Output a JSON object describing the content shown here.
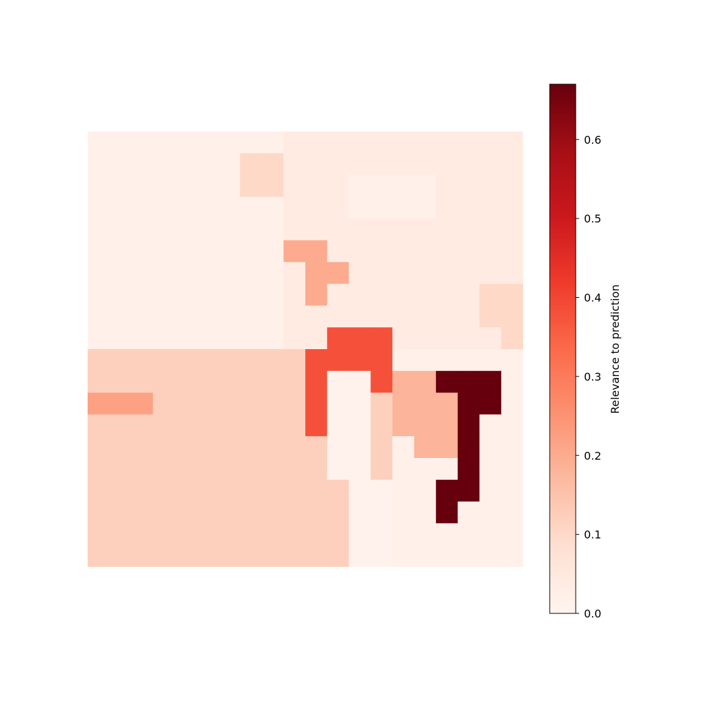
{
  "chart_data": {
    "type": "heatmap",
    "colormap": "Reds",
    "axes_visible": false,
    "grid_resolution": [
      20,
      20
    ],
    "values": [
      [
        0.02,
        0.02,
        0.02,
        0.02,
        0.02,
        0.02,
        0.02,
        0.02,
        0.02,
        0.04,
        0.04,
        0.04,
        0.04,
        0.04,
        0.04,
        0.04,
        0.04,
        0.04,
        0.04,
        0.04
      ],
      [
        0.02,
        0.02,
        0.02,
        0.02,
        0.02,
        0.02,
        0.02,
        0.02,
        0.02,
        0.04,
        0.04,
        0.04,
        0.04,
        0.04,
        0.04,
        0.04,
        0.04,
        0.04,
        0.04,
        0.04
      ],
      [
        0.02,
        0.02,
        0.02,
        0.02,
        0.02,
        0.02,
        0.02,
        0.02,
        0.02,
        0.04,
        0.04,
        0.04,
        0.02,
        0.02,
        0.02,
        0.02,
        0.04,
        0.04,
        0.04,
        0.04
      ],
      [
        0.02,
        0.02,
        0.02,
        0.02,
        0.02,
        0.02,
        0.02,
        0.02,
        0.02,
        0.04,
        0.04,
        0.04,
        0.02,
        0.02,
        0.02,
        0.02,
        0.04,
        0.04,
        0.04,
        0.04
      ],
      [
        0.02,
        0.02,
        0.02,
        0.02,
        0.02,
        0.02,
        0.02,
        0.02,
        0.02,
        0.04,
        0.04,
        0.04,
        0.04,
        0.04,
        0.04,
        0.04,
        0.04,
        0.04,
        0.04,
        0.04
      ],
      [
        0.02,
        0.02,
        0.02,
        0.02,
        0.02,
        0.02,
        0.02,
        0.02,
        0.02,
        0.04,
        0.04,
        0.04,
        0.04,
        0.04,
        0.04,
        0.04,
        0.04,
        0.04,
        0.04,
        0.04
      ],
      [
        0.02,
        0.02,
        0.02,
        0.02,
        0.02,
        0.02,
        0.02,
        0.02,
        0.02,
        0.04,
        0.04,
        0.04,
        0.04,
        0.04,
        0.04,
        0.04,
        0.04,
        0.04,
        0.04,
        0.04
      ],
      [
        0.02,
        0.02,
        0.02,
        0.02,
        0.02,
        0.02,
        0.02,
        0.02,
        0.02,
        0.04,
        0.04,
        0.04,
        0.04,
        0.04,
        0.04,
        0.04,
        0.04,
        0.04,
        0.04,
        0.04
      ],
      [
        0.02,
        0.02,
        0.02,
        0.02,
        0.02,
        0.02,
        0.02,
        0.02,
        0.02,
        0.04,
        0.04,
        0.04,
        0.04,
        0.04,
        0.04,
        0.04,
        0.04,
        0.04,
        0.04,
        0.04
      ],
      [
        0.02,
        0.02,
        0.02,
        0.02,
        0.02,
        0.02,
        0.02,
        0.02,
        0.02,
        0.04,
        0.04,
        0.04,
        0.04,
        0.04,
        0.04,
        0.04,
        0.04,
        0.04,
        0.04,
        0.04
      ],
      [
        0.12,
        0.12,
        0.12,
        0.12,
        0.12,
        0.12,
        0.12,
        0.12,
        0.12,
        0.12,
        0.12,
        0.12,
        0.12,
        0.12,
        0.02,
        0.02,
        0.02,
        0.02,
        0.02,
        0.02
      ],
      [
        0.12,
        0.12,
        0.12,
        0.12,
        0.12,
        0.12,
        0.12,
        0.12,
        0.12,
        0.12,
        0.12,
        0.12,
        0.12,
        0.12,
        0.02,
        0.02,
        0.02,
        0.02,
        0.02,
        0.02
      ],
      [
        0.12,
        0.12,
        0.12,
        0.12,
        0.12,
        0.12,
        0.12,
        0.12,
        0.12,
        0.12,
        0.12,
        0.12,
        0.12,
        0.12,
        0.02,
        0.02,
        0.02,
        0.02,
        0.02,
        0.02
      ],
      [
        0.12,
        0.12,
        0.12,
        0.12,
        0.12,
        0.12,
        0.12,
        0.12,
        0.12,
        0.12,
        0.12,
        0.12,
        0.12,
        0.12,
        0.02,
        0.02,
        0.02,
        0.02,
        0.02,
        0.02
      ],
      [
        0.12,
        0.12,
        0.12,
        0.12,
        0.12,
        0.12,
        0.12,
        0.12,
        0.12,
        0.12,
        0.12,
        0.12,
        0.12,
        0.12,
        0.02,
        0.02,
        0.02,
        0.02,
        0.02,
        0.02
      ],
      [
        0.12,
        0.12,
        0.12,
        0.12,
        0.12,
        0.12,
        0.12,
        0.12,
        0.12,
        0.12,
        0.12,
        0.12,
        0.12,
        0.12,
        0.02,
        0.02,
        0.02,
        0.02,
        0.02,
        0.02
      ],
      [
        0.12,
        0.12,
        0.12,
        0.12,
        0.12,
        0.12,
        0.12,
        0.12,
        0.12,
        0.12,
        0.12,
        0.12,
        0.12,
        0.12,
        0.02,
        0.02,
        0.02,
        0.02,
        0.02,
        0.02
      ],
      [
        0.12,
        0.12,
        0.12,
        0.12,
        0.12,
        0.12,
        0.12,
        0.12,
        0.12,
        0.12,
        0.12,
        0.12,
        0.12,
        0.12,
        0.02,
        0.02,
        0.02,
        0.02,
        0.02,
        0.02
      ],
      [
        0.12,
        0.12,
        0.12,
        0.12,
        0.12,
        0.12,
        0.12,
        0.12,
        0.12,
        0.12,
        0.12,
        0.12,
        0.12,
        0.12,
        0.02,
        0.02,
        0.02,
        0.02,
        0.02,
        0.02
      ],
      [
        0.12,
        0.12,
        0.12,
        0.12,
        0.12,
        0.12,
        0.12,
        0.12,
        0.12,
        0.12,
        0.12,
        0.12,
        0.12,
        0.12,
        0.02,
        0.02,
        0.02,
        0.02,
        0.02,
        0.02
      ]
    ],
    "regions": [
      {
        "value": 0.38,
        "cells": [
          [
            9,
            11
          ],
          [
            9,
            12
          ],
          [
            9,
            13
          ],
          [
            10,
            10
          ],
          [
            10,
            11
          ],
          [
            10,
            12
          ],
          [
            10,
            13
          ],
          [
            11,
            10
          ],
          [
            11,
            13
          ],
          [
            12,
            10
          ],
          [
            13,
            10
          ]
        ]
      },
      {
        "value": 0.67,
        "cells": [
          [
            11,
            16
          ],
          [
            11,
            17
          ],
          [
            11,
            18
          ],
          [
            12,
            17
          ],
          [
            12,
            18
          ],
          [
            13,
            17
          ],
          [
            14,
            17
          ],
          [
            15,
            17
          ],
          [
            16,
            16
          ],
          [
            16,
            17
          ],
          [
            17,
            16
          ]
        ]
      },
      {
        "value": 0.18,
        "cells": [
          [
            11,
            14
          ],
          [
            11,
            15
          ],
          [
            12,
            14
          ],
          [
            12,
            15
          ],
          [
            12,
            16
          ],
          [
            13,
            14
          ],
          [
            13,
            15
          ],
          [
            13,
            16
          ],
          [
            14,
            15
          ],
          [
            14,
            16
          ]
        ]
      },
      {
        "value": 0.2,
        "cells": [
          [
            5,
            9
          ],
          [
            5,
            10
          ],
          [
            6,
            10
          ],
          [
            6,
            11
          ],
          [
            7,
            10
          ]
        ]
      },
      {
        "value": 0.22,
        "cells": [
          [
            12,
            0
          ],
          [
            12,
            1
          ],
          [
            12,
            2
          ]
        ]
      },
      {
        "value": 0.1,
        "cells": [
          [
            1,
            7
          ],
          [
            1,
            8
          ],
          [
            2,
            7
          ],
          [
            2,
            8
          ],
          [
            7,
            18
          ],
          [
            7,
            19
          ],
          [
            8,
            18
          ],
          [
            8,
            19
          ],
          [
            9,
            19
          ]
        ]
      },
      {
        "value": 0.01,
        "cells": [
          [
            11,
            11
          ],
          [
            11,
            12
          ],
          [
            12,
            11
          ],
          [
            12,
            12
          ],
          [
            13,
            11
          ],
          [
            13,
            12
          ],
          [
            14,
            11
          ],
          [
            14,
            12
          ],
          [
            15,
            11
          ],
          [
            15,
            12
          ],
          [
            16,
            12
          ],
          [
            16,
            13
          ],
          [
            17,
            12
          ],
          [
            17,
            13
          ],
          [
            18,
            12
          ],
          [
            18,
            13
          ],
          [
            19,
            12
          ],
          [
            19,
            13
          ]
        ]
      }
    ],
    "colorbar": {
      "label": "Relevance to prediction",
      "vmin": 0.0,
      "vmax": 0.67,
      "ticks": [
        0.0,
        0.1,
        0.2,
        0.3,
        0.4,
        0.5,
        0.6
      ],
      "tick_labels": [
        "0.0",
        "0.1",
        "0.2",
        "0.3",
        "0.4",
        "0.5",
        "0.6"
      ]
    }
  }
}
